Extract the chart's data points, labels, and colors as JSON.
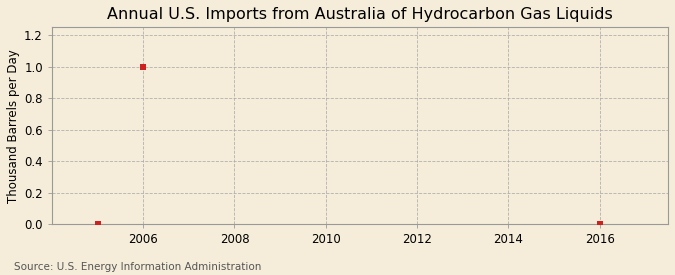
{
  "title": "Annual U.S. Imports from Australia of Hydrocarbon Gas Liquids",
  "ylabel": "Thousand Barrels per Day",
  "source": "Source: U.S. Energy Information Administration",
  "xlim": [
    2004.0,
    2017.5
  ],
  "ylim": [
    0.0,
    1.25
  ],
  "yticks": [
    0.0,
    0.2,
    0.4,
    0.6,
    0.8,
    1.0,
    1.2
  ],
  "xticks": [
    2006,
    2008,
    2010,
    2012,
    2014,
    2016
  ],
  "data_x": [
    2005,
    2006,
    2016
  ],
  "data_y": [
    0.0,
    1.0,
    0.0
  ],
  "marker_color": "#cc2222",
  "marker": "s",
  "marker_size": 4,
  "bg_color": "#f5edd9",
  "plot_bg_color": "#f5edd9",
  "grid_color": "#aaaaaa",
  "spine_color": "#999999",
  "title_fontsize": 11.5,
  "axis_fontsize": 8.5,
  "tick_fontsize": 8.5,
  "source_fontsize": 7.5
}
